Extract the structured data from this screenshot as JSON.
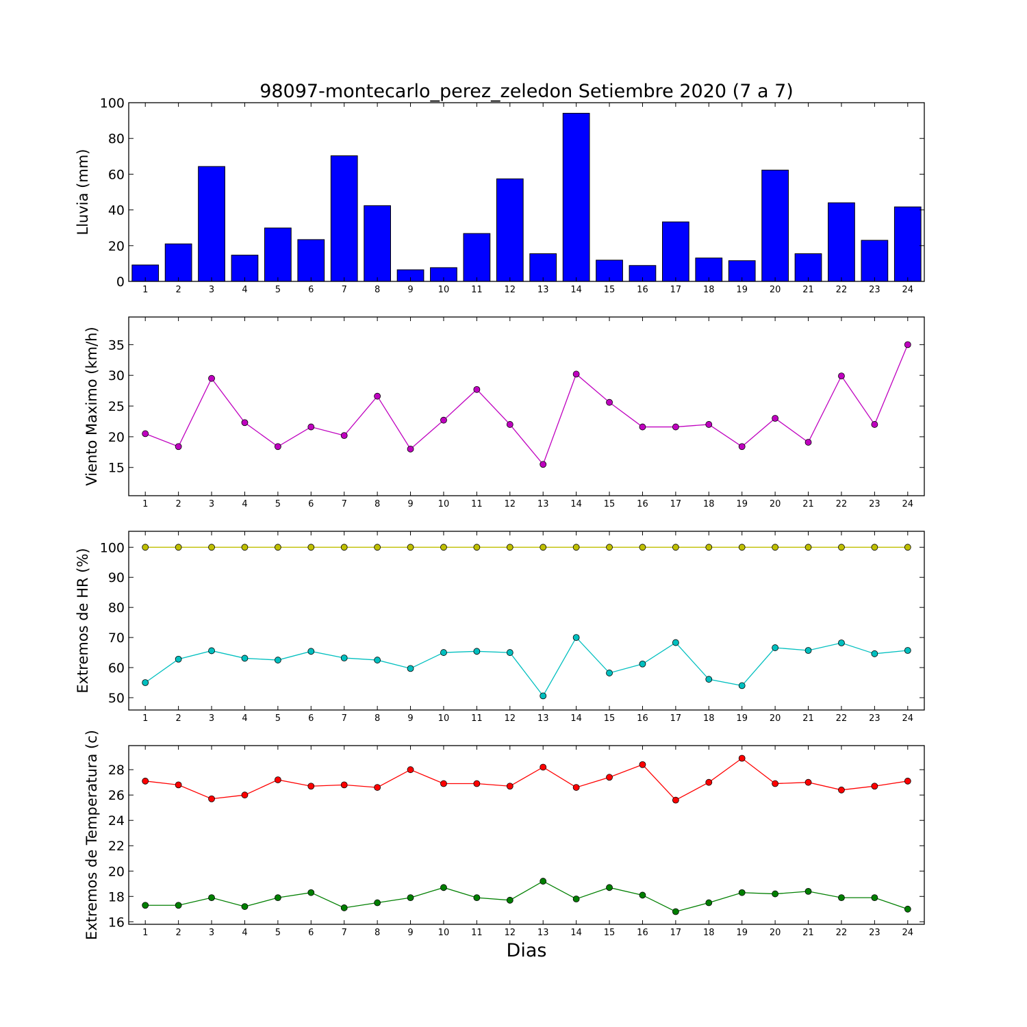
{
  "title": "98097-montecarlo_perez_zeledon Setiembre 2020  (7 a 7)",
  "xlabel": "Dias",
  "chart_data": [
    {
      "type": "bar",
      "ylabel": "Lluvia (mm)",
      "ylim": [
        0,
        100
      ],
      "yticks": [
        0,
        20,
        40,
        60,
        80,
        100
      ],
      "xlim": [
        0.5,
        24.5
      ],
      "x": [
        1,
        2,
        3,
        4,
        5,
        6,
        7,
        8,
        9,
        10,
        11,
        12,
        13,
        14,
        15,
        16,
        17,
        18,
        19,
        20,
        21,
        22,
        23,
        24
      ],
      "series": [
        {
          "color": "#0000ff",
          "values": [
            9.2,
            21.0,
            64.3,
            14.7,
            29.9,
            23.4,
            70.3,
            42.4,
            6.5,
            7.7,
            26.8,
            57.4,
            15.5,
            94.1,
            11.9,
            8.9,
            33.3,
            13.1,
            11.6,
            62.3,
            15.5,
            44.0,
            23.0,
            41.7
          ]
        }
      ]
    },
    {
      "type": "line",
      "ylabel": "Viento Maximo (km/h)",
      "ylim": [
        10.4,
        39.5
      ],
      "yticks": [
        15,
        20,
        25,
        30,
        35
      ],
      "xlim": [
        0.5,
        24.5
      ],
      "x": [
        1,
        2,
        3,
        4,
        5,
        6,
        7,
        8,
        9,
        10,
        11,
        12,
        13,
        14,
        15,
        16,
        17,
        18,
        19,
        20,
        21,
        22,
        23,
        24
      ],
      "series": [
        {
          "color": "#bf00bf",
          "values": [
            20.5,
            18.4,
            29.5,
            22.3,
            18.4,
            21.6,
            20.2,
            26.6,
            18.0,
            22.7,
            27.7,
            22.0,
            15.5,
            30.2,
            25.6,
            21.6,
            21.6,
            22.0,
            18.4,
            23.0,
            19.1,
            29.9,
            22.0,
            35.0
          ]
        }
      ]
    },
    {
      "type": "line",
      "ylabel": "Extremos de HR (%)",
      "ylim": [
        45.9,
        105.3
      ],
      "yticks": [
        50,
        60,
        70,
        80,
        90,
        100
      ],
      "xlim": [
        0.5,
        24.5
      ],
      "x": [
        1,
        2,
        3,
        4,
        5,
        6,
        7,
        8,
        9,
        10,
        11,
        12,
        13,
        14,
        15,
        16,
        17,
        18,
        19,
        20,
        21,
        22,
        23,
        24
      ],
      "series": [
        {
          "color": "#bfbf00",
          "values": [
            100,
            100,
            100,
            100,
            100,
            100,
            100,
            100,
            100,
            100,
            100,
            100,
            100,
            100,
            100,
            100,
            100,
            100,
            100,
            100,
            100,
            100,
            100,
            100
          ]
        },
        {
          "color": "#00bfbf",
          "values": [
            55.0,
            62.8,
            65.6,
            63.1,
            62.5,
            65.4,
            63.2,
            62.5,
            59.7,
            65.0,
            65.4,
            65.0,
            50.6,
            70.0,
            58.2,
            61.2,
            68.3,
            56.1,
            54.0,
            66.6,
            65.7,
            68.2,
            64.6,
            65.7
          ]
        }
      ]
    },
    {
      "type": "line",
      "ylabel": "Extremos de Temperatura (c)",
      "ylim": [
        15.8,
        29.9
      ],
      "yticks": [
        16,
        18,
        20,
        22,
        24,
        26,
        28
      ],
      "xlim": [
        0.5,
        24.5
      ],
      "x": [
        1,
        2,
        3,
        4,
        5,
        6,
        7,
        8,
        9,
        10,
        11,
        12,
        13,
        14,
        15,
        16,
        17,
        18,
        19,
        20,
        21,
        22,
        23,
        24
      ],
      "series": [
        {
          "color": "#ff0000",
          "values": [
            27.1,
            26.8,
            25.7,
            26.0,
            27.2,
            26.7,
            26.8,
            26.6,
            28.0,
            26.9,
            26.9,
            26.7,
            28.2,
            26.6,
            27.4,
            28.4,
            25.6,
            27.0,
            28.9,
            26.9,
            27.0,
            26.4,
            26.7,
            27.1
          ]
        },
        {
          "color": "#007f00",
          "values": [
            17.3,
            17.3,
            17.9,
            17.2,
            17.9,
            18.3,
            17.1,
            17.5,
            17.9,
            18.7,
            17.9,
            17.7,
            19.2,
            17.8,
            18.7,
            18.1,
            16.8,
            17.5,
            18.3,
            18.2,
            18.4,
            17.9,
            17.9,
            17.0
          ]
        }
      ]
    }
  ]
}
